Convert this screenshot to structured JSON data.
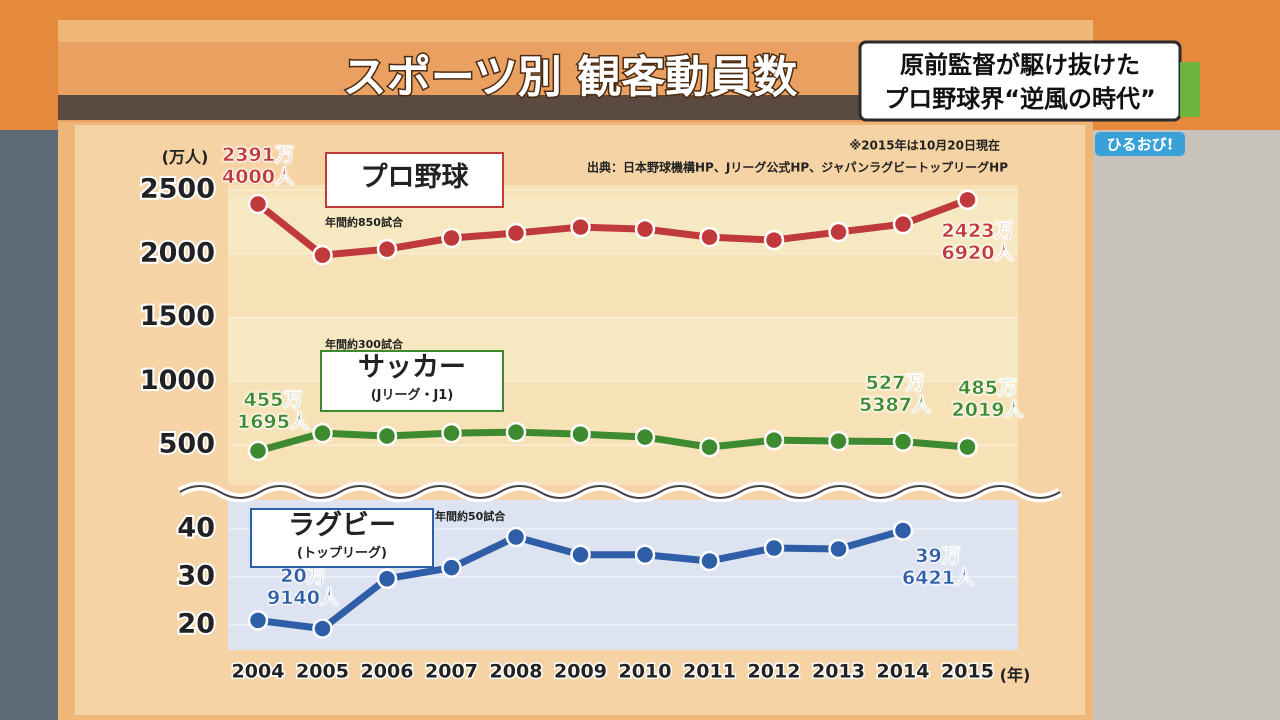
{
  "chart_data": [
    {
      "type": "line",
      "title": "スポーツ別 観客動員数",
      "note": "※2015年は10月20日現在",
      "source": "出典：日本野球機構HP、Jリーグ公式HP、ジャパンラグビートップリーグHP",
      "y_label": "(万人)",
      "ylim": [
        300,
        2540
      ],
      "yticks": [
        500,
        1000,
        1500,
        2000,
        2500
      ],
      "grid": true,
      "series": [
        {
          "name": "プロ野球",
          "annotation": "年間約850試合",
          "color": "#c0393b",
          "values": [
            2391.4,
            1990,
            2037,
            2124,
            2163,
            2210,
            2194,
            2131,
            2108,
            2171,
            2233,
            2423.692
          ],
          "value_labels": [
            "2391万\n4000人",
            null,
            null,
            null,
            null,
            null,
            null,
            null,
            null,
            null,
            null,
            "2423万\n6920人"
          ]
        },
        {
          "name": "サッカー",
          "note": "(Jリーグ・J1)",
          "annotation": "年間約300試合",
          "color": "#3e8a2e",
          "values": [
            455.1695,
            594,
            571,
            594,
            602,
            586,
            563,
            484,
            539,
            531,
            527.5387,
            485.2019
          ],
          "value_labels": [
            "455万\n1695人",
            null,
            null,
            null,
            null,
            null,
            null,
            null,
            null,
            null,
            "527万\n5387人",
            "485万\n2019人"
          ]
        }
      ]
    },
    {
      "type": "line",
      "x_label": "(年)",
      "categories": [
        "2004",
        "2005",
        "2006",
        "2007",
        "2008",
        "2009",
        "2010",
        "2011",
        "2012",
        "2013",
        "2014",
        "2015"
      ],
      "ylim": [
        16,
        46
      ],
      "yticks": [
        20,
        30,
        40
      ],
      "grid": true,
      "series": [
        {
          "name": "ラグビー",
          "note": "(トップリーグ)",
          "annotation": "年間約50試合",
          "color": "#2f5ea8",
          "values": [
            20.914,
            19.2,
            29.6,
            31.9,
            38.3,
            34.6,
            34.6,
            33.3,
            36.0,
            35.8,
            39.6421,
            null
          ],
          "value_labels": [
            "20万\n9140人",
            null,
            null,
            null,
            null,
            null,
            null,
            null,
            null,
            null,
            "39万\n6421人",
            null
          ]
        }
      ]
    }
  ],
  "overlay": {
    "headline": [
      "原前監督が駆け抜けた",
      "プロ野球界“逆風の時代”"
    ],
    "logo": "ひるおび!"
  }
}
